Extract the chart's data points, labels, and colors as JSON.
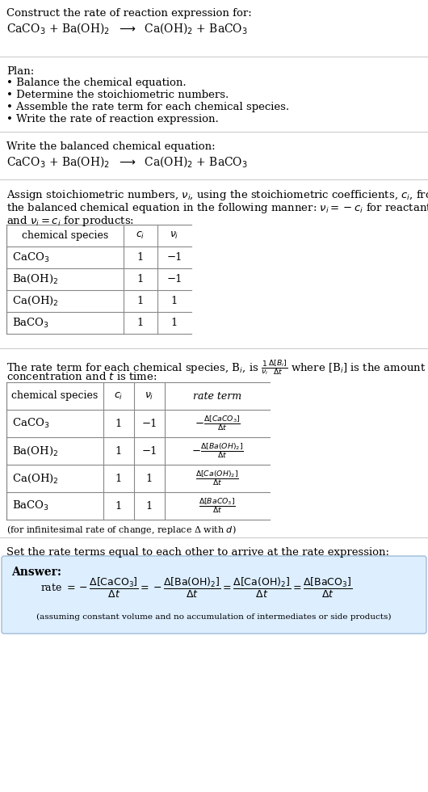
{
  "title_line1": "Construct the rate of reaction expression for:",
  "title_line2_plain": "CaCO",
  "plan_header": "Plan:",
  "plan_items": [
    "• Balance the chemical equation.",
    "• Determine the stoichiometric numbers.",
    "• Assemble the rate term for each chemical species.",
    "• Write the rate of reaction expression."
  ],
  "section2_header": "Write the balanced chemical equation:",
  "section3_text": "Assign stoichiometric numbers, $\\nu_i$, using the stoichiometric coefficients, $c_i$, from\nthe balanced chemical equation in the following manner: $\\nu_i = -c_i$ for reactants\nand $\\nu_i = c_i$ for products:",
  "table1_headers": [
    "chemical species",
    "$c_i$",
    "$\\nu_i$"
  ],
  "table1_rows": [
    [
      "CaCO$_3$",
      "1",
      "−1"
    ],
    [
      "Ba(OH)$_2$",
      "1",
      "−1"
    ],
    [
      "Ca(OH)$_2$",
      "1",
      "1"
    ],
    [
      "BaCO$_3$",
      "1",
      "1"
    ]
  ],
  "section4_text1": "The rate term for each chemical species, B$_i$, is $\\frac{1}{\\nu_i}\\frac{\\Delta[B_i]}{\\Delta t}$ where [B$_i$] is the amount",
  "section4_text2": "concentration and $t$ is time:",
  "table2_headers": [
    "chemical species",
    "$c_i$",
    "$\\nu_i$",
    "rate term"
  ],
  "table2_rows": [
    [
      "CaCO$_3$",
      "1",
      "−1",
      "$-\\frac{\\Delta[CaCO_3]}{\\Delta t}$"
    ],
    [
      "Ba(OH)$_2$",
      "1",
      "−1",
      "$-\\frac{\\Delta[Ba(OH)_2]}{\\Delta t}$"
    ],
    [
      "Ca(OH)$_2$",
      "1",
      "1",
      "$\\frac{\\Delta[Ca(OH)_2]}{\\Delta t}$"
    ],
    [
      "BaCO$_3$",
      "1",
      "1",
      "$\\frac{\\Delta[BaCO_3]}{\\Delta t}$"
    ]
  ],
  "infinitesimal_note": "(for infinitesimal rate of change, replace Δ with $d$)",
  "section5_header": "Set the rate terms equal to each other to arrive at the rate expression:",
  "answer_label": "Answer:",
  "assumption_note": "(assuming constant volume and no accumulation of intermediates or side products)",
  "bg_color": "#ffffff",
  "answer_bg_color": "#ddeeff",
  "table_border_color": "#888888",
  "sep_line_color": "#cccccc",
  "text_color": "#000000",
  "font_family": "DejaVu Serif",
  "font_size": 9.5
}
